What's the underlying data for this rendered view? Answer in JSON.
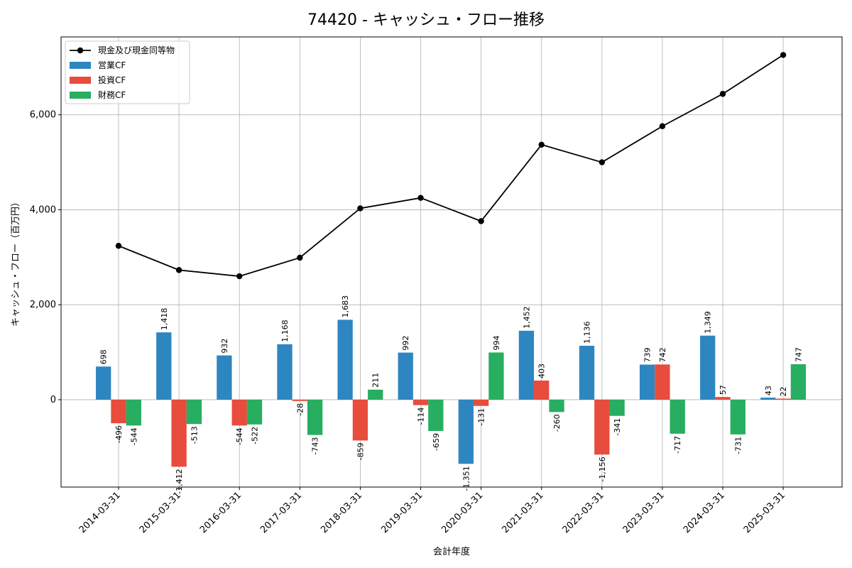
{
  "title": "74420 - キャッシュ・フロー推移",
  "chart_data": {
    "type": "bar",
    "title": "74420 - キャッシュ・フロー推移",
    "xlabel": "会計年度",
    "ylabel": "キャッシュ・フロー（百万円）",
    "categories": [
      "2014-03-31",
      "2015-03-31",
      "2016-03-31",
      "2017-03-31",
      "2018-03-31",
      "2019-03-31",
      "2020-03-31",
      "2021-03-31",
      "2022-03-31",
      "2023-03-31",
      "2024-03-31",
      "2025-03-31"
    ],
    "ylim": [
      -1840,
      7640
    ],
    "yticks": [
      0,
      2000,
      4000,
      6000
    ],
    "ytick_labels": [
      "0",
      "2,000",
      "4,000",
      "6,000"
    ],
    "grid": true,
    "legend_position": "top-left",
    "series": [
      {
        "name": "営業CF",
        "kind": "bar",
        "color": "#2e86c1",
        "values": [
          698,
          1418,
          932,
          1168,
          1683,
          992,
          -1351,
          1452,
          1136,
          739,
          1349,
          43
        ],
        "labels": [
          "698",
          "1,418",
          "932",
          "1,168",
          "1,683",
          "992",
          "-1,351",
          "1,452",
          "1,136",
          "739",
          "1,349",
          "43"
        ]
      },
      {
        "name": "投資CF",
        "kind": "bar",
        "color": "#e74c3c",
        "values": [
          -496,
          -1412,
          -544,
          -28,
          -859,
          -114,
          -131,
          403,
          -1156,
          742,
          57,
          22
        ],
        "labels": [
          "-496",
          "-1,412",
          "-544",
          "-28",
          "-859",
          "-114",
          "-131",
          "403",
          "-1,156",
          "742",
          "57",
          "22"
        ]
      },
      {
        "name": "財務CF",
        "kind": "bar",
        "color": "#27ae60",
        "values": [
          -544,
          -513,
          -522,
          -743,
          211,
          -659,
          994,
          -260,
          -341,
          -717,
          -731,
          747
        ],
        "labels": [
          "-544",
          "-513",
          "-522",
          "-743",
          "211",
          "-659",
          "994",
          "-260",
          "-341",
          "-717",
          "-731",
          "747"
        ]
      },
      {
        "name": "現金及び現金同等物",
        "kind": "line",
        "color": "#000000",
        "values": [
          3240,
          2730,
          2600,
          2990,
          4030,
          4250,
          3760,
          5370,
          5000,
          5760,
          6440,
          7260
        ]
      }
    ]
  }
}
